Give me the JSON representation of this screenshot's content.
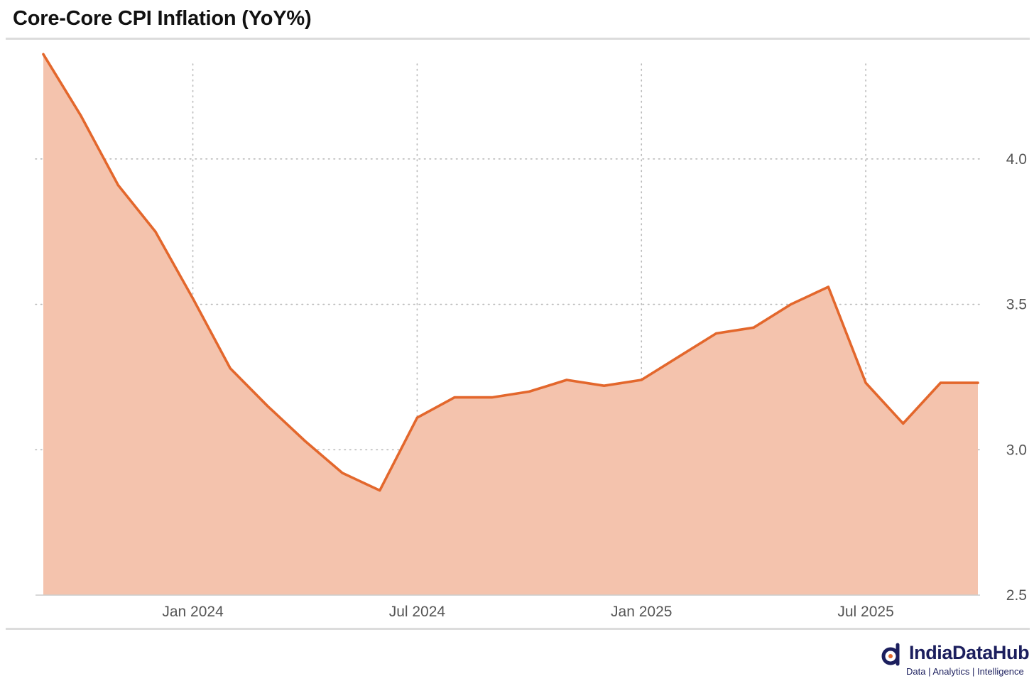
{
  "title": "Core-Core CPI Inflation (YoY%)",
  "colors": {
    "line": "#e3672c",
    "fill": "#f4c3ad",
    "grid": "#b9b9b9",
    "axis": "#cccccc",
    "brand": "#1c1f5e"
  },
  "brand": {
    "name": "IndiaDataHub",
    "tagline": "Data | Analytics | Intelligence",
    "icon": "india-data-hub-logo-icon"
  },
  "chart_data": {
    "type": "area",
    "title": "Core-Core CPI Inflation (YoY%)",
    "xlabel": "",
    "ylabel": "",
    "x": [
      "2023-09",
      "2023-10",
      "2023-11",
      "2023-12",
      "2024-01",
      "2024-02",
      "2024-03",
      "2024-04",
      "2024-05",
      "2024-06",
      "2024-07",
      "2024-08",
      "2024-09",
      "2024-10",
      "2024-11",
      "2024-12",
      "2025-01",
      "2025-02",
      "2025-03",
      "2025-04",
      "2025-05",
      "2025-06",
      "2025-07",
      "2025-08",
      "2025-09",
      "2025-10"
    ],
    "series": [
      {
        "name": "Core-Core CPI Inflation (YoY%)",
        "values": [
          4.36,
          4.15,
          3.91,
          3.75,
          3.52,
          3.28,
          3.15,
          3.03,
          2.92,
          2.86,
          3.11,
          3.18,
          3.18,
          3.2,
          3.24,
          3.22,
          3.24,
          3.32,
          3.4,
          3.42,
          3.5,
          3.56,
          3.23,
          3.09,
          3.23,
          3.23
        ]
      }
    ],
    "ylim": [
      2.5,
      4.4
    ],
    "y_ticks": [
      2.5,
      3.0,
      3.5,
      4.0
    ],
    "y_tick_labels": [
      "2.5",
      "3.0",
      "3.5",
      "4.0"
    ],
    "x_ticks": [
      {
        "date": "2024-01",
        "label": "Jan 2024"
      },
      {
        "date": "2024-07",
        "label": "Jul 2024"
      },
      {
        "date": "2025-01",
        "label": "Jan 2025"
      },
      {
        "date": "2025-07",
        "label": "Jul 2025"
      }
    ],
    "grid": true,
    "y_axis_position": "right"
  }
}
